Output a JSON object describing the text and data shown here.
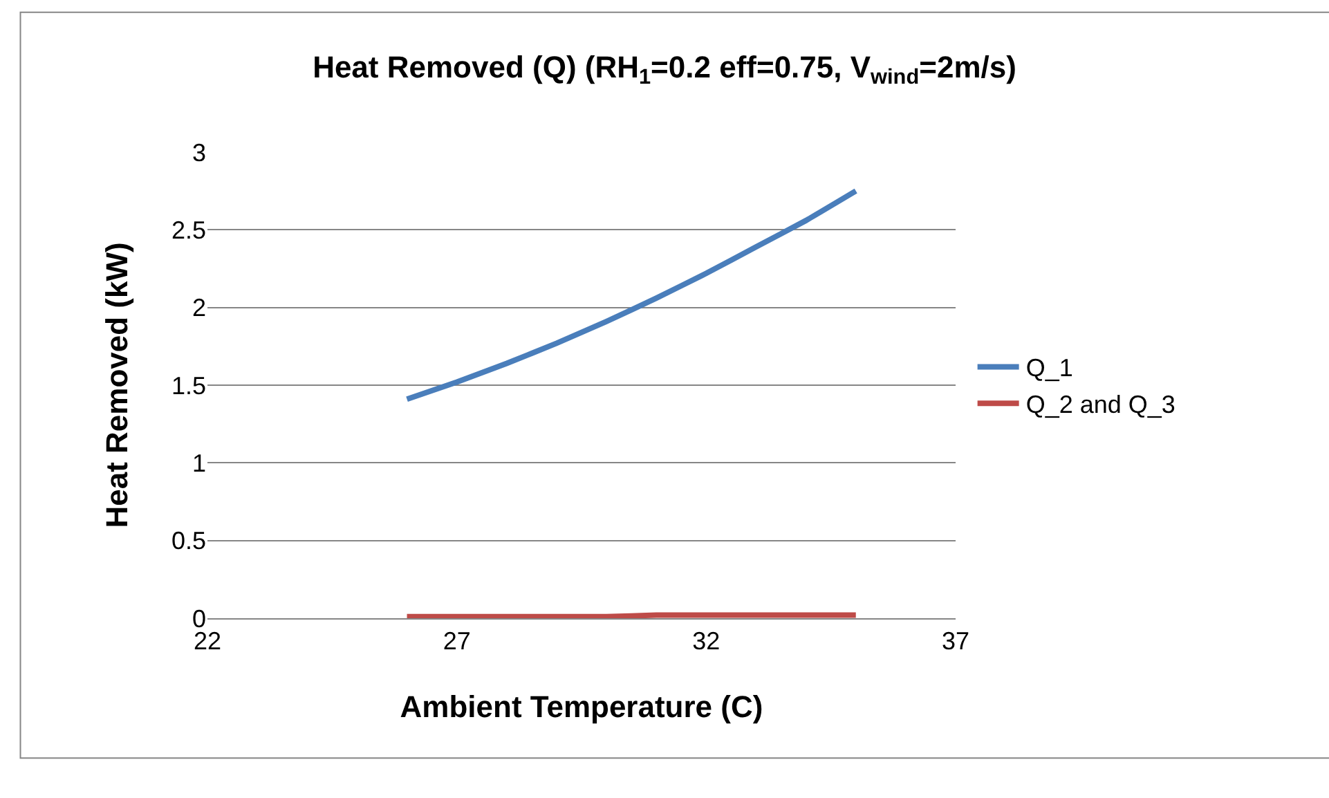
{
  "chart_data": {
    "type": "line",
    "title": "Heat Removed (Q) (RH$_{1}$=0.2 eff=0.75, V$_{wind}$=2m/s)",
    "xlabel": "Ambient Temperature (C)",
    "ylabel": "Heat Removed (kW)",
    "x": [
      26,
      27,
      28,
      29,
      30,
      31,
      32,
      33,
      34,
      35
    ],
    "series": [
      {
        "name": "Q_1",
        "color": "#4a7ebb",
        "values": [
          1.41,
          1.52,
          1.64,
          1.77,
          1.91,
          2.06,
          2.22,
          2.39,
          2.56,
          2.75
        ]
      },
      {
        "name": "Q_2 and Q_3",
        "color": "#be4b48",
        "values": [
          0.01,
          0.01,
          0.01,
          0.01,
          0.01,
          0.02,
          0.02,
          0.02,
          0.02,
          0.02
        ]
      }
    ],
    "xlim": [
      22,
      37
    ],
    "xticks": [
      22,
      27,
      32,
      37
    ],
    "ylim": [
      0,
      3
    ],
    "yticks": [
      0,
      0.5,
      1,
      1.5,
      2,
      2.5,
      3
    ],
    "grid": "y",
    "legend": "right",
    "marker": "none",
    "line_style": "solid"
  }
}
